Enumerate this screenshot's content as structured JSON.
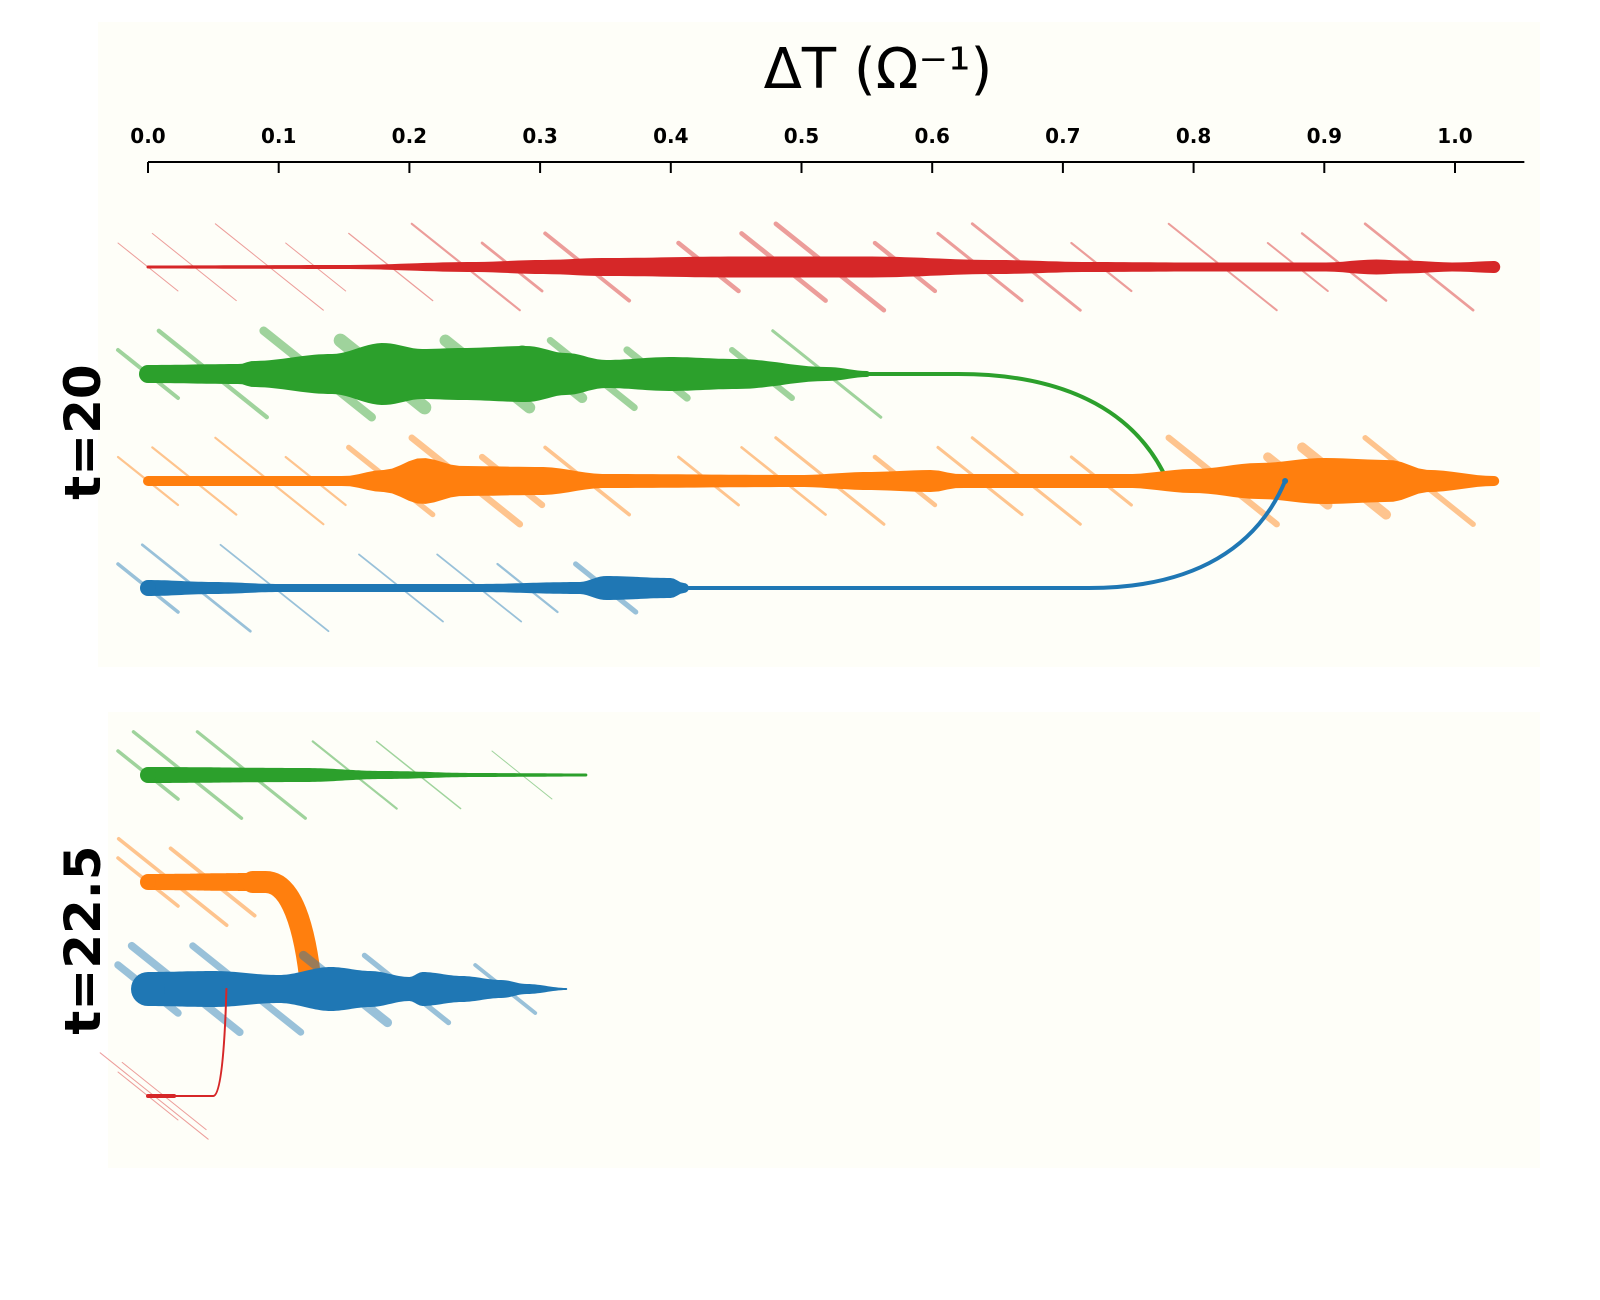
{
  "chart_data": {
    "type": "line",
    "xlabel": "ΔT (Ω⁻¹)",
    "x_ticks": [
      "0.0",
      "0.1",
      "0.2",
      "0.3",
      "0.4",
      "0.5",
      "0.6",
      "0.7",
      "0.8",
      "0.9",
      "1.0"
    ],
    "x_tick_values": [
      0.0,
      0.1,
      0.2,
      0.3,
      0.4,
      0.5,
      0.6,
      0.7,
      0.8,
      0.9,
      1.0
    ],
    "xlim": [
      -0.01,
      1.05
    ],
    "x_axis_position": "top",
    "grid": false,
    "colors": {
      "red": "#d62728",
      "green": "#2ca02c",
      "orange": "#ff7f0e",
      "blue": "#1f77b4",
      "panel_background": "#fefef8"
    },
    "panels": [
      {
        "label": "t=20",
        "tracks": [
          {
            "color": "red",
            "level": 0,
            "end": 1.03,
            "width": [
              [
                0.0,
                3
              ],
              [
                0.15,
                4
              ],
              [
                0.25,
                10
              ],
              [
                0.3,
                14
              ],
              [
                0.35,
                18
              ],
              [
                0.45,
                21
              ],
              [
                0.55,
                21
              ],
              [
                0.65,
                14
              ],
              [
                0.72,
                10
              ],
              [
                0.8,
                9
              ],
              [
                0.9,
                9
              ],
              [
                0.94,
                15
              ],
              [
                0.96,
                13
              ],
              [
                1.0,
                9
              ],
              [
                1.03,
                12
              ]
            ],
            "merge": null
          },
          {
            "color": "green",
            "level": 1,
            "end": 0.55,
            "width": [
              [
                0.0,
                18
              ],
              [
                0.07,
                20
              ],
              [
                0.08,
                26
              ],
              [
                0.14,
                40
              ],
              [
                0.18,
                62
              ],
              [
                0.21,
                50
              ],
              [
                0.24,
                52
              ],
              [
                0.29,
                56
              ],
              [
                0.32,
                42
              ],
              [
                0.35,
                28
              ],
              [
                0.4,
                34
              ],
              [
                0.45,
                30
              ],
              [
                0.52,
                14
              ],
              [
                0.55,
                6
              ]
            ],
            "merge": {
              "x0": 0.55,
              "x_bend": 0.62,
              "x1": 0.78,
              "target_level": 2,
              "path_width": 4,
              "end_width": 12
            }
          },
          {
            "color": "orange",
            "level": 2,
            "end": 1.03,
            "width": [
              [
                0.0,
                10
              ],
              [
                0.15,
                10
              ],
              [
                0.18,
                22
              ],
              [
                0.21,
                46
              ],
              [
                0.24,
                30
              ],
              [
                0.3,
                28
              ],
              [
                0.35,
                14
              ],
              [
                0.5,
                12
              ],
              [
                0.55,
                18
              ],
              [
                0.6,
                22
              ],
              [
                0.62,
                14
              ],
              [
                0.75,
                14
              ],
              [
                0.8,
                24
              ],
              [
                0.85,
                36
              ],
              [
                0.9,
                46
              ],
              [
                0.95,
                42
              ],
              [
                0.98,
                22
              ],
              [
                1.03,
                10
              ]
            ],
            "merge": null
          },
          {
            "color": "blue",
            "level": 3,
            "end": 0.35,
            "width": [
              [
                0.0,
                16
              ],
              [
                0.05,
                12
              ],
              [
                0.1,
                8
              ],
              [
                0.25,
                8
              ],
              [
                0.33,
                12
              ],
              [
                0.35,
                24
              ],
              [
                0.4,
                20
              ],
              [
                0.41,
                10
              ]
            ],
            "merge": {
              "x0": 0.41,
              "x_bend": 0.72,
              "x1": 0.87,
              "target_level": 2,
              "path_width": 4,
              "end_width": 6
            }
          }
        ]
      },
      {
        "label": "t=22.5",
        "tracks": [
          {
            "color": "green",
            "level": 0,
            "end": 0.335,
            "width": [
              [
                0.0,
                16
              ],
              [
                0.12,
                14
              ],
              [
                0.18,
                8
              ],
              [
                0.25,
                4
              ],
              [
                0.335,
                3
              ]
            ],
            "merge": null
          },
          {
            "color": "orange",
            "level": 1,
            "end": 0.08,
            "width": [
              [
                0.0,
                16
              ],
              [
                0.08,
                18
              ]
            ],
            "merge": {
              "x0": 0.08,
              "x_bend": 0.09,
              "x1": 0.125,
              "target_level": 2,
              "path_width": 22,
              "end_width": 22
            }
          },
          {
            "color": "blue",
            "level": 2,
            "end": 0.32,
            "width": [
              [
                0.0,
                34
              ],
              [
                0.05,
                36
              ],
              [
                0.1,
                28
              ],
              [
                0.14,
                44
              ],
              [
                0.17,
                36
              ],
              [
                0.2,
                24
              ],
              [
                0.21,
                34
              ],
              [
                0.24,
                26
              ],
              [
                0.27,
                18
              ],
              [
                0.29,
                10
              ],
              [
                0.32,
                2
              ]
            ],
            "merge": null
          },
          {
            "color": "red",
            "level": 3,
            "end": 0.02,
            "width": [
              [
                0.0,
                4
              ],
              [
                0.02,
                4
              ]
            ],
            "merge": {
              "x0": 0.02,
              "x_bend": 0.05,
              "x1": 0.06,
              "target_level": 2,
              "path_width": 2,
              "end_width": 2
            }
          }
        ]
      }
    ]
  }
}
